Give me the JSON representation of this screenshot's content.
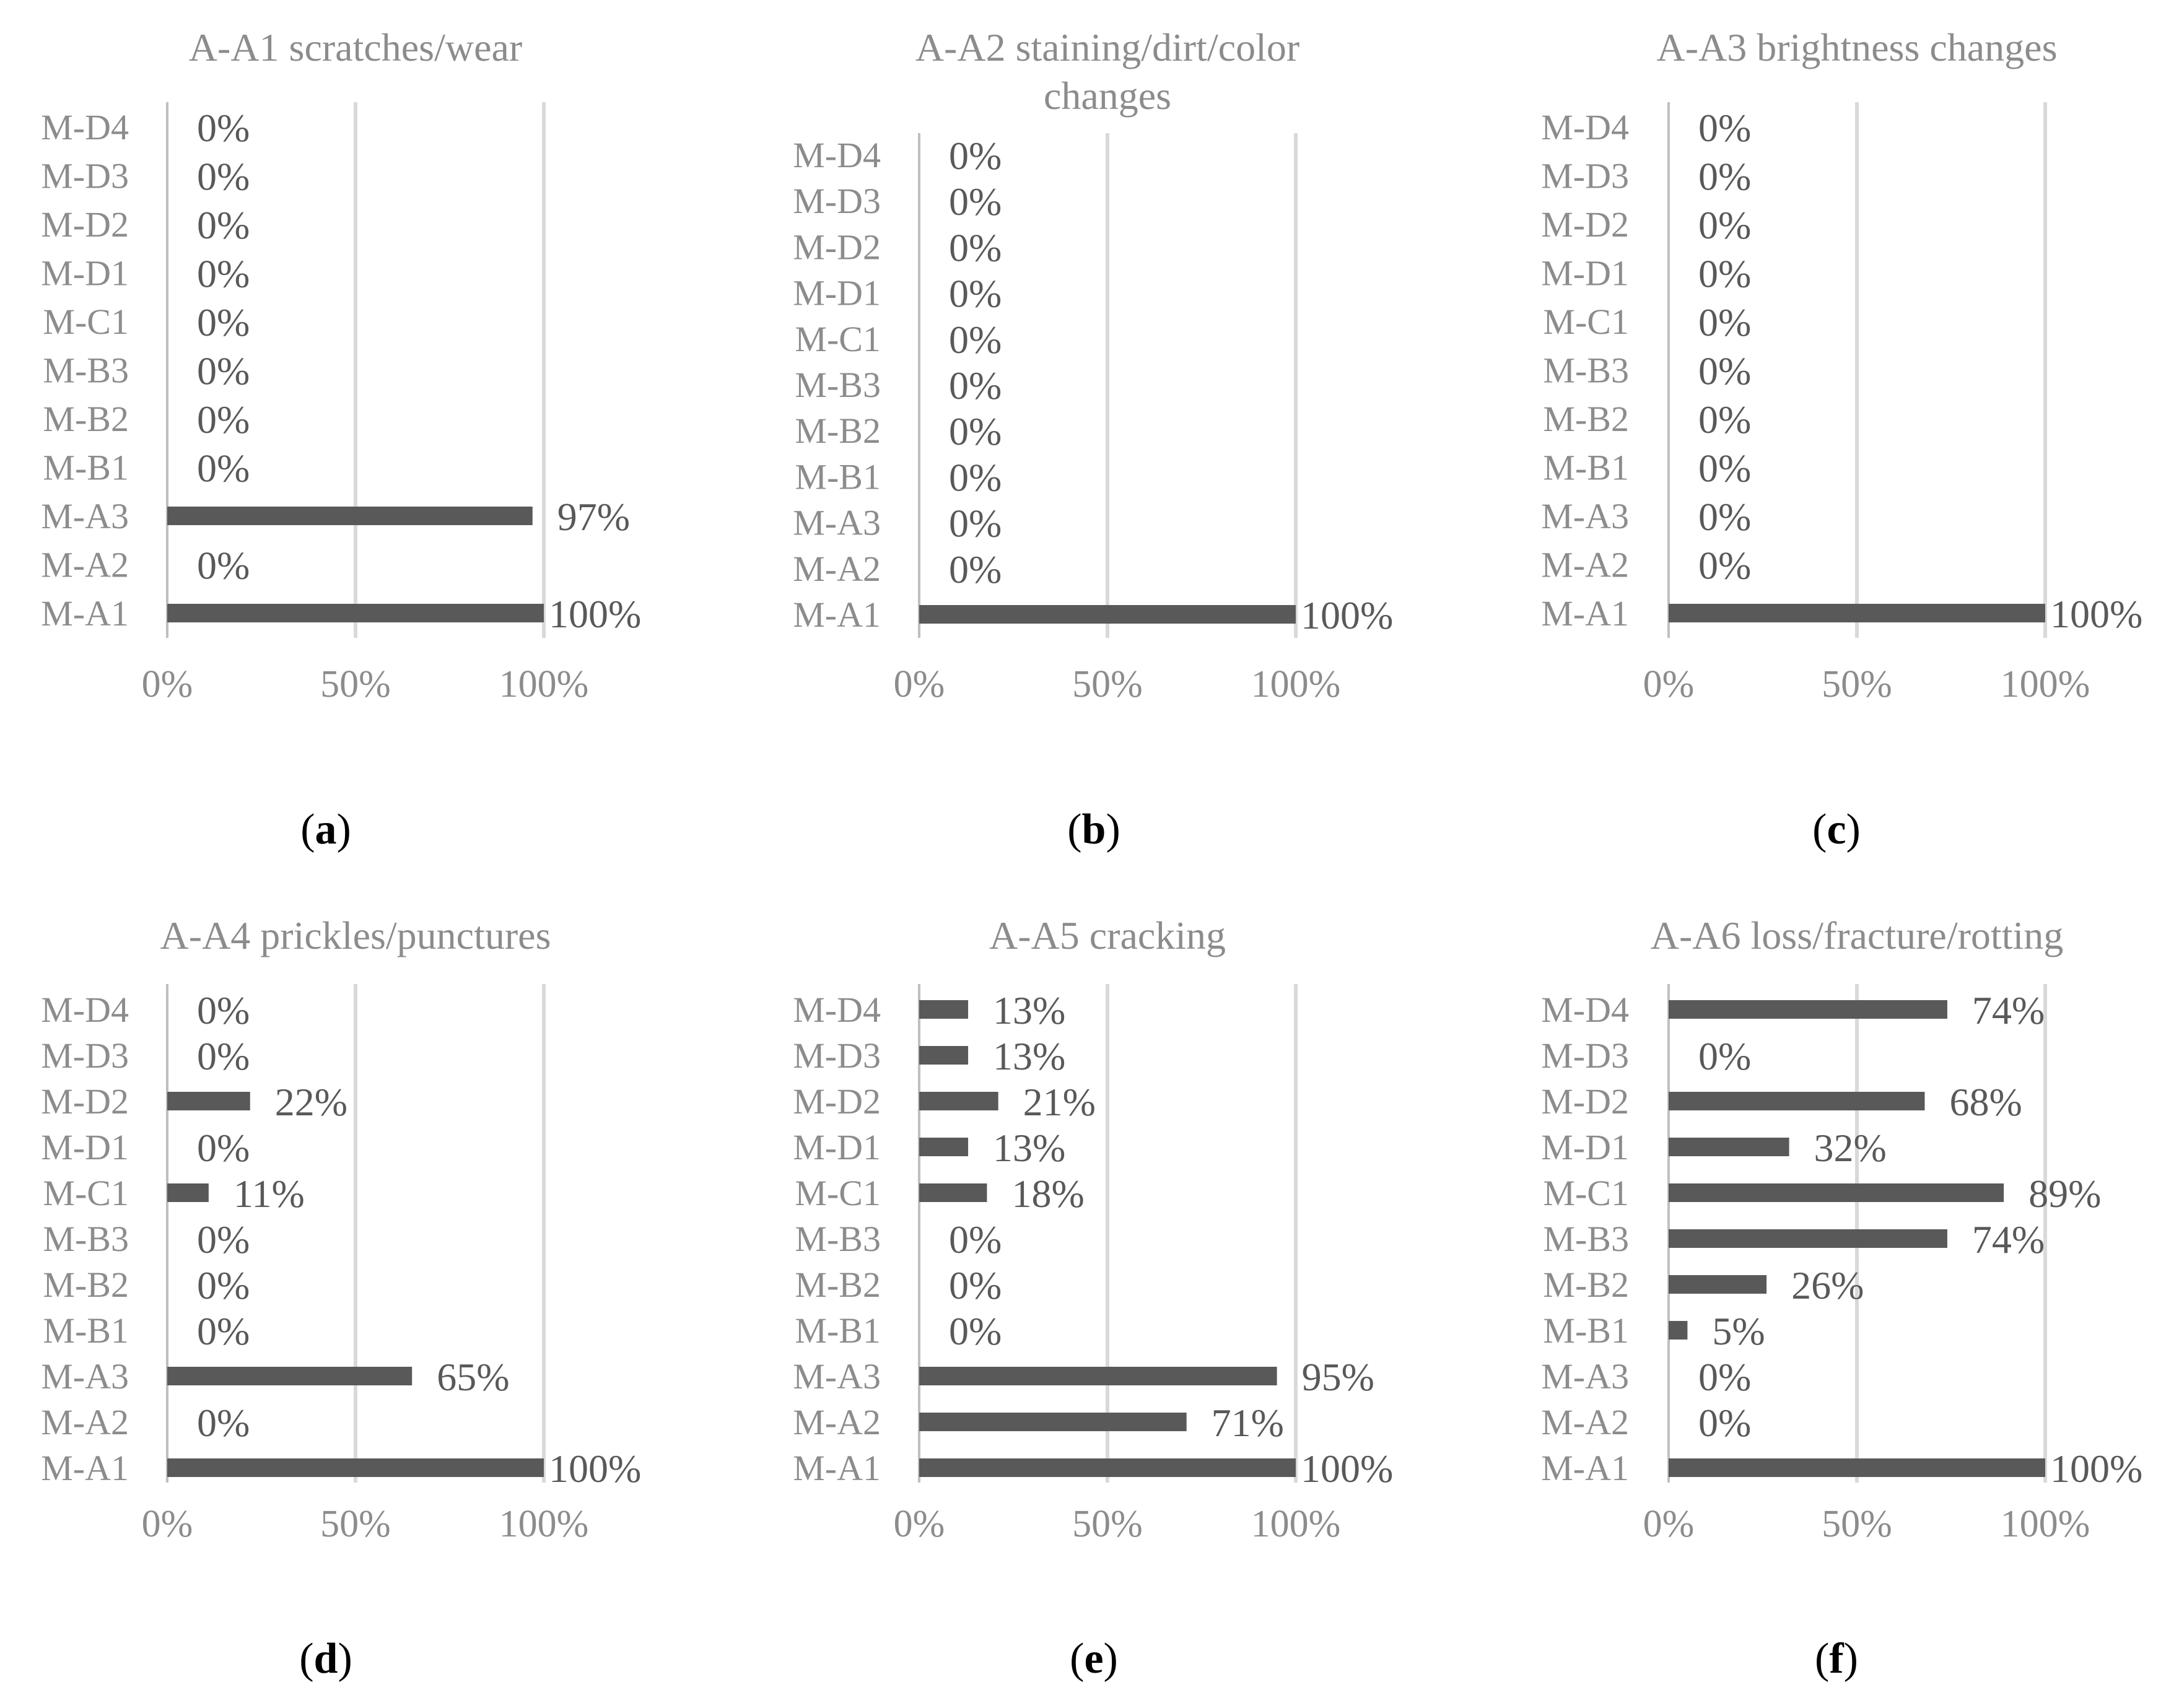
{
  "chart_data": [
    {
      "type": "bar",
      "orientation": "horizontal",
      "panel_label": "a",
      "title": "A-A1 scratches/wear",
      "categories": [
        "M-A1",
        "M-A2",
        "M-A3",
        "M-B1",
        "M-B2",
        "M-B3",
        "M-C1",
        "M-D1",
        "M-D2",
        "M-D3",
        "M-D4"
      ],
      "values": [
        100,
        0,
        97,
        0,
        0,
        0,
        0,
        0,
        0,
        0,
        0
      ],
      "data_labels": [
        "100%",
        "0%",
        "97%",
        "0%",
        "0%",
        "0%",
        "0%",
        "0%",
        "0%",
        "0%",
        "0%"
      ],
      "xlim": [
        0,
        100
      ],
      "xticks": [
        "0%",
        "50%",
        "100%"
      ],
      "grid": "vertical",
      "legend": "none"
    },
    {
      "type": "bar",
      "orientation": "horizontal",
      "panel_label": "b",
      "title": "A-A2 staining/dirt/color changes",
      "title_lines": [
        "A-A2 staining/dirt/color",
        "changes"
      ],
      "categories": [
        "M-A1",
        "M-A2",
        "M-A3",
        "M-B1",
        "M-B2",
        "M-B3",
        "M-C1",
        "M-D1",
        "M-D2",
        "M-D3",
        "M-D4"
      ],
      "values": [
        100,
        0,
        0,
        0,
        0,
        0,
        0,
        0,
        0,
        0,
        0
      ],
      "data_labels": [
        "100%",
        "0%",
        "0%",
        "0%",
        "0%",
        "0%",
        "0%",
        "0%",
        "0%",
        "0%",
        "0%"
      ],
      "xlim": [
        0,
        100
      ],
      "xticks": [
        "0%",
        "50%",
        "100%"
      ],
      "grid": "vertical",
      "legend": "none"
    },
    {
      "type": "bar",
      "orientation": "horizontal",
      "panel_label": "c",
      "title": "A-A3 brightness changes",
      "categories": [
        "M-A1",
        "M-A2",
        "M-A3",
        "M-B1",
        "M-B2",
        "M-B3",
        "M-C1",
        "M-D1",
        "M-D2",
        "M-D3",
        "M-D4"
      ],
      "values": [
        100,
        0,
        0,
        0,
        0,
        0,
        0,
        0,
        0,
        0,
        0
      ],
      "data_labels": [
        "100%",
        "0%",
        "0%",
        "0%",
        "0%",
        "0%",
        "0%",
        "0%",
        "0%",
        "0%",
        "0%"
      ],
      "xlim": [
        0,
        100
      ],
      "xticks": [
        "0%",
        "50%",
        "100%"
      ],
      "grid": "vertical",
      "legend": "none"
    },
    {
      "type": "bar",
      "orientation": "horizontal",
      "panel_label": "d",
      "title": "A-A4 prickles/punctures",
      "categories": [
        "M-A1",
        "M-A2",
        "M-A3",
        "M-B1",
        "M-B2",
        "M-B3",
        "M-C1",
        "M-D1",
        "M-D2",
        "M-D3",
        "M-D4"
      ],
      "values": [
        100,
        0,
        65,
        0,
        0,
        0,
        11,
        0,
        22,
        0,
        0
      ],
      "data_labels": [
        "100%",
        "0%",
        "65%",
        "0%",
        "0%",
        "0%",
        "11%",
        "0%",
        "22%",
        "0%",
        "0%"
      ],
      "xlim": [
        0,
        100
      ],
      "xticks": [
        "0%",
        "50%",
        "100%"
      ],
      "grid": "vertical",
      "legend": "none"
    },
    {
      "type": "bar",
      "orientation": "horizontal",
      "panel_label": "e",
      "title": "A-A5 cracking",
      "categories": [
        "M-A1",
        "M-A2",
        "M-A3",
        "M-B1",
        "M-B2",
        "M-B3",
        "M-C1",
        "M-D1",
        "M-D2",
        "M-D3",
        "M-D4"
      ],
      "values": [
        100,
        71,
        95,
        0,
        0,
        0,
        18,
        13,
        21,
        13,
        13
      ],
      "data_labels": [
        "100%",
        "71%",
        "95%",
        "0%",
        "0%",
        "0%",
        "18%",
        "13%",
        "21%",
        "13%",
        "13%"
      ],
      "xlim": [
        0,
        100
      ],
      "xticks": [
        "0%",
        "50%",
        "100%"
      ],
      "grid": "vertical",
      "legend": "none"
    },
    {
      "type": "bar",
      "orientation": "horizontal",
      "panel_label": "f",
      "title": "A-A6 loss/fracture/rotting",
      "categories": [
        "M-A1",
        "M-A2",
        "M-A3",
        "M-B1",
        "M-B2",
        "M-B3",
        "M-C1",
        "M-D1",
        "M-D2",
        "M-D3",
        "M-D4"
      ],
      "values": [
        100,
        0,
        0,
        5,
        26,
        74,
        89,
        32,
        68,
        0,
        74
      ],
      "data_labels": [
        "100%",
        "0%",
        "0%",
        "5%",
        "26%",
        "74%",
        "89%",
        "32%",
        "68%",
        "0%",
        "74%"
      ],
      "xlim": [
        0,
        100
      ],
      "xticks": [
        "0%",
        "50%",
        "100%"
      ],
      "grid": "vertical",
      "legend": "none"
    }
  ]
}
